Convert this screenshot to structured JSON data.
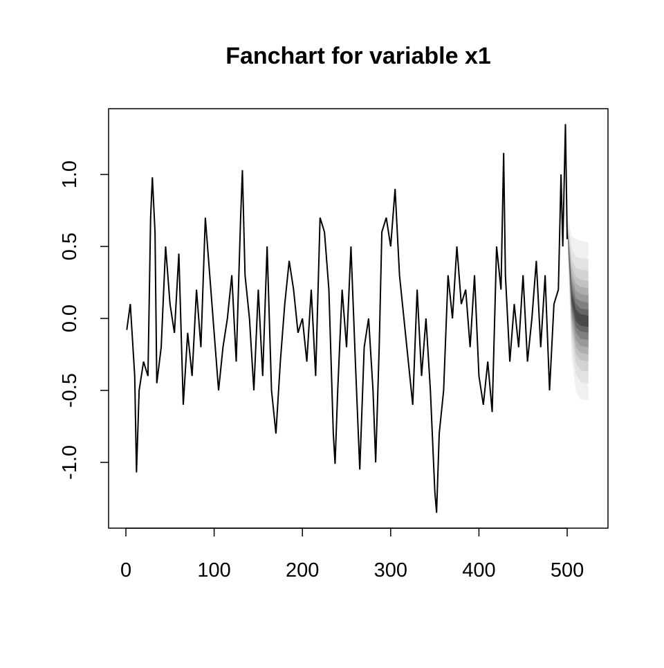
{
  "chart_data": {
    "type": "fanchart",
    "title": "Fanchart for variable x1",
    "x": [
      1,
      5,
      10,
      12,
      15,
      20,
      25,
      28,
      30,
      33,
      35,
      40,
      45,
      50,
      55,
      60,
      65,
      70,
      75,
      80,
      85,
      90,
      95,
      100,
      105,
      110,
      115,
      120,
      125,
      130,
      132,
      135,
      140,
      145,
      150,
      155,
      160,
      165,
      170,
      175,
      180,
      185,
      190,
      195,
      200,
      205,
      210,
      215,
      220,
      225,
      230,
      235,
      237,
      240,
      245,
      250,
      255,
      260,
      265,
      270,
      275,
      280,
      283,
      287,
      290,
      295,
      300,
      305,
      310,
      315,
      320,
      325,
      330,
      335,
      340,
      345,
      350,
      352,
      355,
      360,
      365,
      370,
      375,
      380,
      385,
      390,
      395,
      400,
      405,
      410,
      415,
      420,
      425,
      428,
      430,
      435,
      440,
      445,
      450,
      455,
      460,
      465,
      470,
      475,
      480,
      485,
      490,
      493,
      495,
      498,
      500
    ],
    "series": [
      {
        "color": "#000000",
        "values": [
          -0.08,
          0.1,
          -0.4,
          -1.07,
          -0.5,
          -0.3,
          -0.4,
          0.7,
          0.98,
          0.6,
          -0.45,
          -0.2,
          0.5,
          0.1,
          -0.1,
          0.45,
          -0.6,
          -0.1,
          -0.4,
          0.2,
          -0.2,
          0.7,
          0.3,
          -0.1,
          -0.5,
          -0.2,
          0.0,
          0.3,
          -0.3,
          0.7,
          1.03,
          0.3,
          0.0,
          -0.5,
          0.2,
          -0.4,
          0.5,
          -0.5,
          -0.8,
          -0.3,
          0.1,
          0.4,
          0.2,
          -0.1,
          0.0,
          -0.3,
          0.2,
          -0.4,
          0.7,
          0.6,
          0.2,
          -0.8,
          -1.01,
          -0.5,
          0.2,
          -0.2,
          0.5,
          -0.3,
          -1.05,
          -0.2,
          0.0,
          -0.5,
          -1.0,
          -0.2,
          0.6,
          0.7,
          0.5,
          0.9,
          0.3,
          0.0,
          -0.3,
          -0.6,
          0.2,
          -0.4,
          0.0,
          -0.5,
          -1.2,
          -1.35,
          -0.8,
          -0.5,
          0.3,
          0.0,
          0.5,
          0.1,
          0.2,
          -0.2,
          0.3,
          -0.4,
          -0.6,
          -0.3,
          -0.65,
          0.5,
          0.2,
          1.15,
          0.3,
          -0.3,
          0.1,
          -0.2,
          0.3,
          -0.3,
          0.0,
          0.4,
          -0.2,
          0.3,
          -0.5,
          0.1,
          0.2,
          1.0,
          0.5,
          1.35,
          0.55
        ]
      }
    ],
    "fan": {
      "x": [
        501,
        505,
        510,
        515,
        524
      ],
      "bands": [
        {
          "color": "#f0f0f0",
          "upper": [
            0.7,
            0.57,
            0.55,
            0.54,
            0.53
          ],
          "lower": [
            0.4,
            -0.27,
            -0.51,
            -0.56,
            -0.57
          ]
        },
        {
          "color": "#e2e2e2",
          "upper": [
            0.67,
            0.48,
            0.43,
            0.42,
            0.41
          ],
          "lower": [
            0.43,
            -0.18,
            -0.39,
            -0.44,
            -0.45
          ]
        },
        {
          "color": "#d3d3d3",
          "upper": [
            0.64,
            0.41,
            0.35,
            0.34,
            0.33
          ],
          "lower": [
            0.46,
            -0.11,
            -0.31,
            -0.36,
            -0.37
          ]
        },
        {
          "color": "#c2c2c2",
          "upper": [
            0.63,
            0.36,
            0.29,
            0.27,
            0.26
          ],
          "lower": [
            0.47,
            -0.06,
            -0.25,
            -0.29,
            -0.3
          ]
        },
        {
          "color": "#aeaeae",
          "upper": [
            0.61,
            0.32,
            0.24,
            0.22,
            0.21
          ],
          "lower": [
            0.49,
            -0.02,
            -0.2,
            -0.24,
            -0.25
          ]
        },
        {
          "color": "#999999",
          "upper": [
            0.6,
            0.28,
            0.19,
            0.17,
            0.16
          ],
          "lower": [
            0.5,
            0.02,
            -0.15,
            -0.19,
            -0.2
          ]
        },
        {
          "color": "#808080",
          "upper": [
            0.58,
            0.25,
            0.14,
            0.12,
            0.11
          ],
          "lower": [
            0.52,
            0.05,
            -0.1,
            -0.14,
            -0.15
          ]
        },
        {
          "color": "#666666",
          "upper": [
            0.57,
            0.21,
            0.1,
            0.07,
            0.06
          ],
          "lower": [
            0.53,
            0.09,
            -0.06,
            -0.09,
            -0.1
          ]
        },
        {
          "color": "#4a4a4a",
          "upper": [
            0.56,
            0.18,
            0.06,
            0.03,
            0.02
          ],
          "lower": [
            0.54,
            0.12,
            -0.02,
            -0.05,
            -0.06
          ]
        }
      ]
    },
    "xlim": [
      -19.6,
      546.2
    ],
    "ylim": [
      -1.457,
      1.457
    ],
    "xticks": [
      0,
      100,
      200,
      300,
      400,
      500
    ],
    "yticks": [
      {
        "value": -1,
        "label": "-1.0"
      },
      {
        "value": -0.5,
        "label": "-0.5"
      },
      {
        "value": 0,
        "label": "0.0"
      },
      {
        "value": 0.5,
        "label": "0.5"
      },
      {
        "value": 1,
        "label": "1.0"
      }
    ]
  }
}
